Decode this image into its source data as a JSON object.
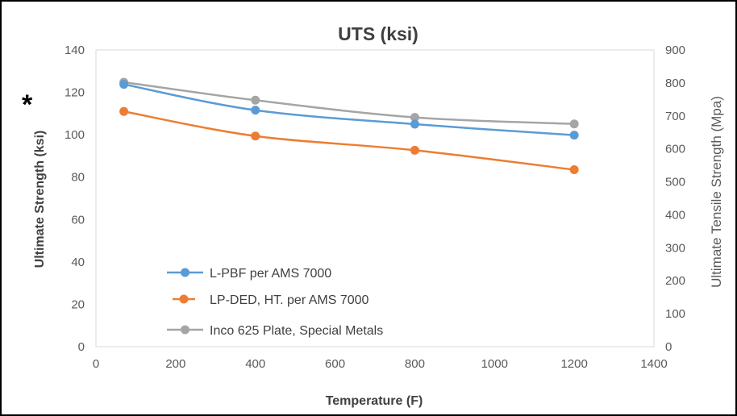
{
  "chart_data": {
    "type": "line",
    "title": "UTS (ksi)",
    "xlabel": "Temperature (F)",
    "ylabel": "Ultimate Strength (ksi)",
    "y2label": "Ultimate Tensile Strength (Mpa)",
    "xlim": [
      0,
      1400
    ],
    "ylim": [
      0,
      140
    ],
    "y2lim": [
      0,
      900
    ],
    "x_ticks": [
      0,
      200,
      400,
      600,
      800,
      1000,
      1200,
      1400
    ],
    "y_ticks": [
      0,
      20,
      40,
      60,
      80,
      100,
      120,
      140
    ],
    "y2_ticks": [
      0,
      100,
      200,
      300,
      400,
      500,
      600,
      700,
      800,
      900
    ],
    "grid": false,
    "legend_placement": "bottom-left",
    "annotation": "*",
    "series": [
      {
        "name": "L-PBF per AMS 7000",
        "color": "#5B9BD5",
        "x": [
          70,
          400,
          800,
          1200
        ],
        "values": [
          123.8,
          111.6,
          105.0,
          99.8
        ]
      },
      {
        "name": "LP-DED, HT. per AMS 7000",
        "color": "#ED7D31",
        "x": [
          70,
          400,
          800,
          1200
        ],
        "values": [
          111.0,
          99.4,
          92.7,
          83.5
        ]
      },
      {
        "name": "Inco 625 Plate, Special Metals",
        "color": "#A5A5A5",
        "x": [
          70,
          400,
          800,
          1200
        ],
        "values": [
          124.8,
          116.3,
          108.2,
          105.1
        ]
      }
    ]
  }
}
